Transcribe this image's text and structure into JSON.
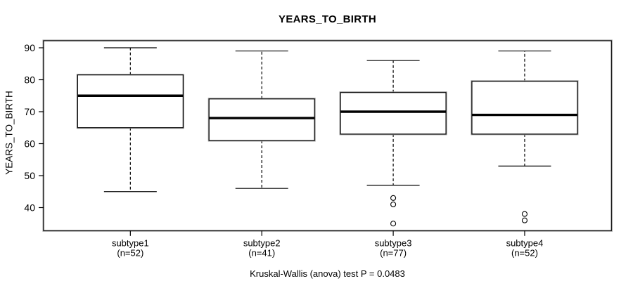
{
  "title": "YEARS_TO_BIRTH",
  "y_axis": {
    "label": "YEARS_TO_BIRTH"
  },
  "footer": {
    "caption": "Kruskal-Wallis (anova) test P = 0.0483"
  },
  "chart_data": {
    "type": "boxplot",
    "title": "YEARS_TO_BIRTH",
    "ylabel": "YEARS_TO_BIRTH",
    "xlabel": "",
    "yticks": [
      40,
      50,
      60,
      70,
      80,
      90
    ],
    "ylim": [
      32.8,
      92.2
    ],
    "grid": false,
    "legend": "none",
    "categories": [
      "subtype1",
      "subtype2",
      "subtype3",
      "subtype4"
    ],
    "category_sublabels": [
      "(n=52)",
      "(n=41)",
      "(n=77)",
      "(n=52)"
    ],
    "sample_sizes": [
      52,
      41,
      77,
      52
    ],
    "series": [
      {
        "name": "subtype1",
        "n": 52,
        "whisker_low": 45,
        "q1": 65,
        "median": 75,
        "q3": 81.5,
        "whisker_high": 90,
        "outliers": []
      },
      {
        "name": "subtype2",
        "n": 41,
        "whisker_low": 46,
        "q1": 61,
        "median": 68,
        "q3": 74,
        "whisker_high": 89,
        "outliers": []
      },
      {
        "name": "subtype3",
        "n": 77,
        "whisker_low": 47,
        "q1": 63,
        "median": 70,
        "q3": 76,
        "whisker_high": 86,
        "outliers": [
          43,
          41,
          35
        ]
      },
      {
        "name": "subtype4",
        "n": 52,
        "whisker_low": 53,
        "q1": 63,
        "median": 69,
        "q3": 79.5,
        "whisker_high": 89,
        "outliers": [
          38,
          36
        ]
      }
    ],
    "annotation": "Kruskal-Wallis (anova) test P = 0.0483",
    "colors": {
      "stroke": "#000000",
      "fill": "#ffffff",
      "shadow": "#999999",
      "background": "#ffffff"
    }
  }
}
